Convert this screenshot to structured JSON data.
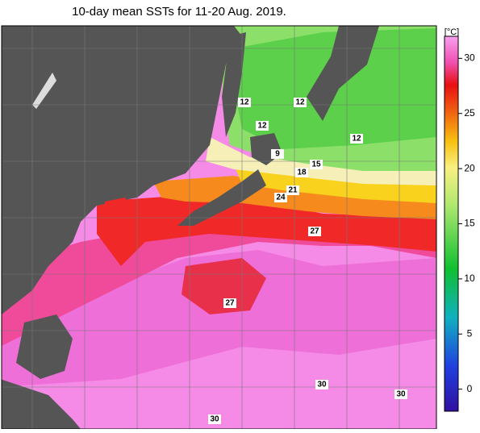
{
  "title": "10-day mean SSTs for 11-20 Aug. 2019.",
  "colorbar": {
    "unit": "[°C]",
    "lim": [
      -2,
      32
    ],
    "ticks": [
      0,
      5,
      10,
      15,
      20,
      25,
      30
    ]
  },
  "contour_labels": [
    12,
    12,
    12,
    12,
    9,
    15,
    18,
    21,
    24,
    27,
    27,
    30,
    30,
    30
  ]
}
